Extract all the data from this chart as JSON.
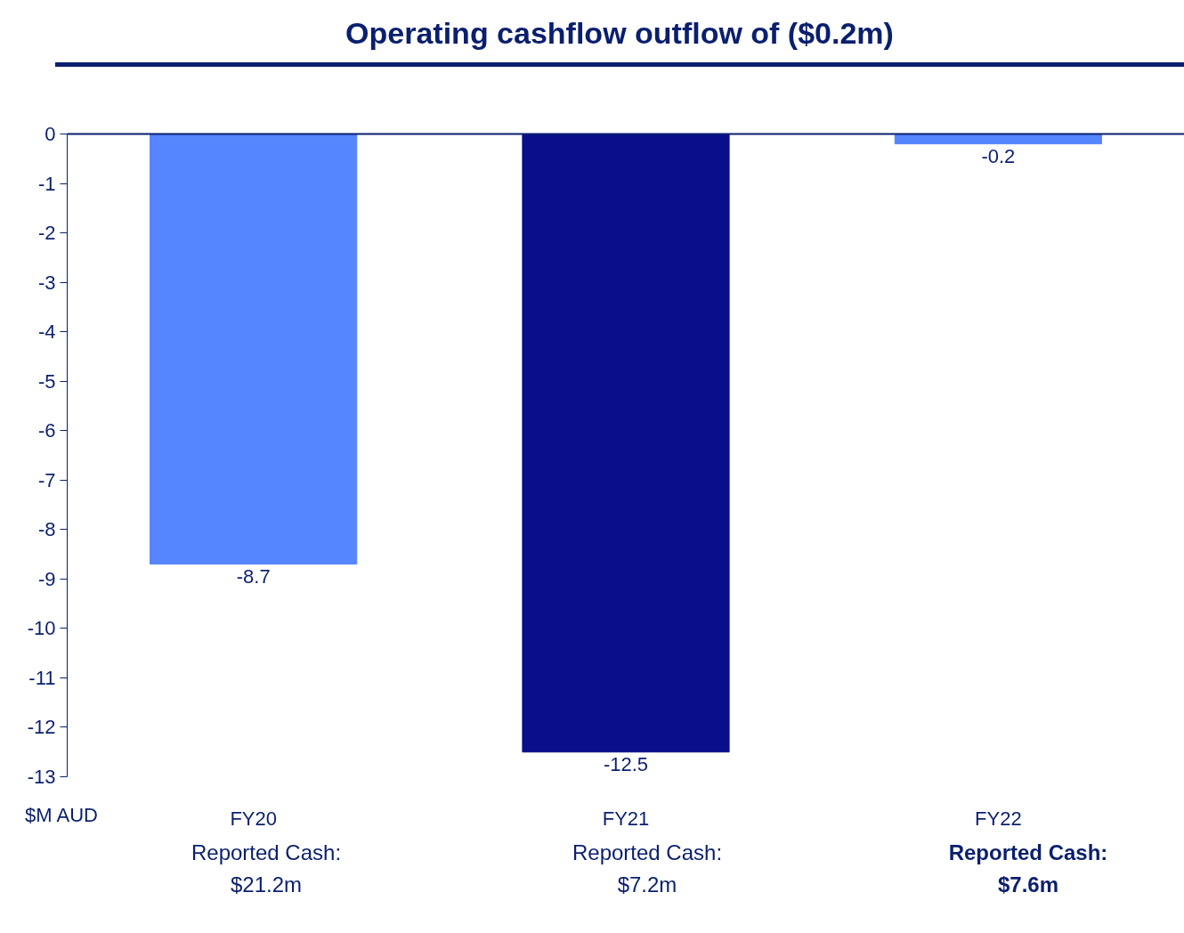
{
  "chart_data": {
    "type": "bar",
    "title": "Operating cashflow outflow of ($0.2m)",
    "ylabel": "$M AUD",
    "categories": [
      "FY20",
      "FY21",
      "FY22"
    ],
    "values": [
      -8.7,
      -12.5,
      -0.2
    ],
    "colors": [
      "#5585ff",
      "#0a0e8a",
      "#5585ff"
    ],
    "ylim": [
      -13,
      0
    ],
    "yticks": [
      0,
      -1,
      -2,
      -3,
      -4,
      -5,
      -6,
      -7,
      -8,
      -9,
      -10,
      -11,
      -12,
      -13
    ],
    "data_labels": true,
    "grid": false,
    "annotations": [
      "Reported Cash:\n$21.2m",
      "Reported Cash:\n$7.2m",
      "Reported Cash:\n$7.6m"
    ]
  }
}
